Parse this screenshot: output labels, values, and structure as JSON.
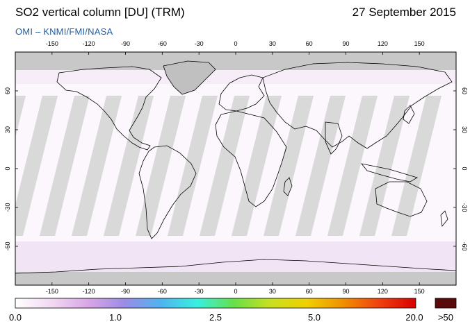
{
  "header": {
    "title": "SO2 vertical column [DU] (TRM)",
    "date": "27 September 2015",
    "credit": "OMI  –  KNMI/FMI/NASA"
  },
  "map": {
    "projection": "equirectangular",
    "lon_range": [
      -180,
      180
    ],
    "lat_range": [
      -90,
      90
    ],
    "lon_ticks": [
      "-150",
      "-120",
      "-90",
      "-60",
      "-30",
      "0",
      "30",
      "60",
      "90",
      "120",
      "150"
    ],
    "lat_ticks": [
      "60",
      "30",
      "0",
      "-30",
      "-60"
    ],
    "grid": false,
    "colors": {
      "no_data": "#c8c8c8",
      "orbit_gap": "#d9d9d9",
      "land_outline": "#000000",
      "low_value": "#f6effa"
    }
  },
  "colorbar": {
    "labels": [
      "0.0",
      "1.0",
      "2.5",
      "5.0",
      "20.0"
    ],
    "overflow_label": ">50",
    "overflow_color": "#5a0a0a",
    "stops": [
      "#ffffff",
      "#f2d9f2",
      "#d9a6e6",
      "#9b8ce6",
      "#4fb3f0",
      "#38f0e0",
      "#66e04a",
      "#c8e020",
      "#f0d000",
      "#f09000",
      "#f04010",
      "#d80000"
    ]
  }
}
